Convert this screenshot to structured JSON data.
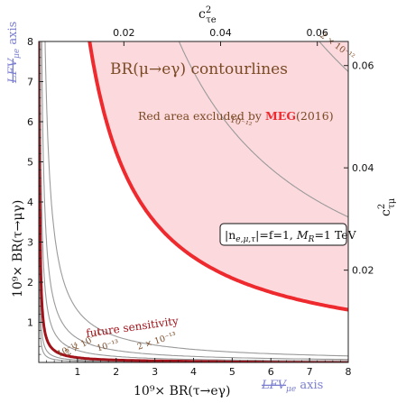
{
  "chart_data": {
    "type": "line",
    "title": "BR(μ→eγ) contourlines",
    "xlabel": "10⁹× BR(τ→eγ)",
    "ylabel": "10⁹× BR(τ→μγ)",
    "top_axis_label": "c²_τe",
    "right_axis_label": "c²_τμ",
    "top_axis_label_parts": {
      "base": "c",
      "sup": "2",
      "sub": "τe"
    },
    "right_axis_label_parts": {
      "base": "c",
      "sup": "2",
      "sub": "τμ"
    },
    "xlim": [
      0,
      8
    ],
    "ylim": [
      0,
      8
    ],
    "x_ticks": [
      1,
      2,
      3,
      4,
      5,
      6,
      7,
      8
    ],
    "y_ticks": [
      1,
      2,
      3,
      4,
      5,
      6,
      7,
      8
    ],
    "top_ticks": [
      {
        "label": "0.02",
        "x": 2.2
      },
      {
        "label": "0.04",
        "x": 4.7
      },
      {
        "label": "0.06",
        "x": 7.2
      }
    ],
    "right_ticks": [
      {
        "label": "0.02",
        "y": 2.3
      },
      {
        "label": "0.04",
        "y": 4.85
      },
      {
        "label": "0.06",
        "y": 7.4
      }
    ],
    "lfv_x_label": {
      "prefix": "LFV",
      "sub": "μe",
      "suffix": " axis"
    },
    "lfv_y_label": {
      "prefix": "LFV",
      "sub": "μe",
      "suffix": " axis"
    },
    "excluded_label": {
      "prefix": "Red area excluded by ",
      "bold": "MEG",
      "suffix": "(2016)"
    },
    "box_label": {
      "line": "|n",
      "sub": "e,μ,τ",
      "mid": "|=f=1, ",
      "m": "M",
      "msub": "R",
      "tail": "=1 TeV"
    },
    "future_label": "future sensitivity",
    "colors": {
      "excluded_fill": "#fcd9dc",
      "meg_line": "#ee2a2f",
      "future_line": "#a1121a",
      "contour": "#9a9a9a",
      "contour_label": "#7a4a25",
      "lfv": "#7b7fd0"
    },
    "series": [
      {
        "label": "10⁻¹⁴",
        "k": 0.03,
        "kind": "contour"
      },
      {
        "label": "2 × 10⁻¹⁴",
        "k": 0.06,
        "kind": "contour"
      },
      {
        "label": "",
        "k": 0.12,
        "kind": "future"
      },
      {
        "label": "10⁻¹³",
        "k": 0.3,
        "kind": "contour"
      },
      {
        "label": "2 × 10⁻¹³",
        "k": 0.6,
        "kind": "contour"
      },
      {
        "label": "",
        "k": 1.3,
        "kind": "contour"
      },
      {
        "label": "",
        "k": 10.5,
        "kind": "meg"
      },
      {
        "label": "10⁻¹²",
        "k": 29,
        "kind": "contour"
      },
      {
        "label": "2 × 10⁻¹²",
        "k": 58,
        "kind": "contour"
      }
    ]
  }
}
